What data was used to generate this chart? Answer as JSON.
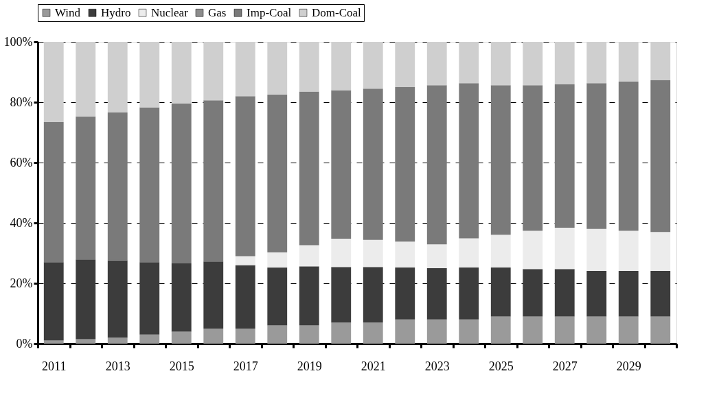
{
  "chart_data": {
    "type": "bar",
    "stacked": true,
    "categories": [
      "2011",
      null,
      "2013",
      null,
      "2015",
      null,
      "2017",
      null,
      "2019",
      null,
      "2021",
      null,
      "2023",
      null,
      "2025",
      null,
      "2027",
      null,
      "2029",
      null
    ],
    "series": [
      {
        "name": "Wind",
        "color": "#9a9a9a",
        "values": [
          1,
          1.5,
          2,
          3,
          4,
          5,
          5,
          6,
          6,
          7,
          7,
          8,
          8,
          8,
          9,
          9,
          9,
          9,
          9,
          9
        ]
      },
      {
        "name": "Hydro",
        "color": "#3c3c3c",
        "values": [
          26,
          26.4,
          25.6,
          24,
          22.6,
          22.2,
          21,
          19.2,
          19.6,
          18.4,
          18.4,
          17.2,
          17,
          17.2,
          16.2,
          15.7,
          15.7,
          15.1,
          15.1,
          15.1
        ]
      },
      {
        "name": "Nuclear",
        "color": "#ececec",
        "values": [
          null,
          null,
          null,
          null,
          null,
          null,
          3,
          5,
          7,
          9.4,
          9,
          8.6,
          7.9,
          9.7,
          10.9,
          12.7,
          13.7,
          13.9,
          13.3,
          12.9
        ]
      },
      {
        "name": "Gas",
        "color": "#8c8c8c",
        "values": [
          null,
          null,
          null,
          null,
          null,
          null,
          null,
          null,
          null,
          null,
          null,
          null,
          null,
          null,
          null,
          null,
          null,
          null,
          null,
          null
        ]
      },
      {
        "name": "Imp-Coal",
        "color": "#7a7a7a",
        "values": [
          46.4,
          47.4,
          49,
          51.3,
          53,
          53.4,
          53,
          52.3,
          50.9,
          49.2,
          50.1,
          51.2,
          52.7,
          51.4,
          49.5,
          48.2,
          47.5,
          48.3,
          49.4,
          50.3
        ]
      },
      {
        "name": "Dom-Coal",
        "color": "#cfcfcf",
        "values": [
          26.6,
          24.7,
          23.4,
          21.7,
          20.4,
          19.4,
          18,
          17.5,
          16.5,
          16,
          15.5,
          15,
          14.4,
          13.7,
          14.4,
          14.4,
          14.1,
          13.7,
          13.2,
          12.7
        ]
      }
    ],
    "ylim": [
      0,
      100
    ],
    "yticks": [
      {
        "value": 0,
        "label": "0%"
      },
      {
        "value": 20,
        "label": "20%"
      },
      {
        "value": 40,
        "label": "40%"
      },
      {
        "value": 60,
        "label": "60%"
      },
      {
        "value": 80,
        "label": "80%"
      },
      {
        "value": 100,
        "label": "100%"
      }
    ],
    "grid": "y",
    "legend": "top"
  }
}
